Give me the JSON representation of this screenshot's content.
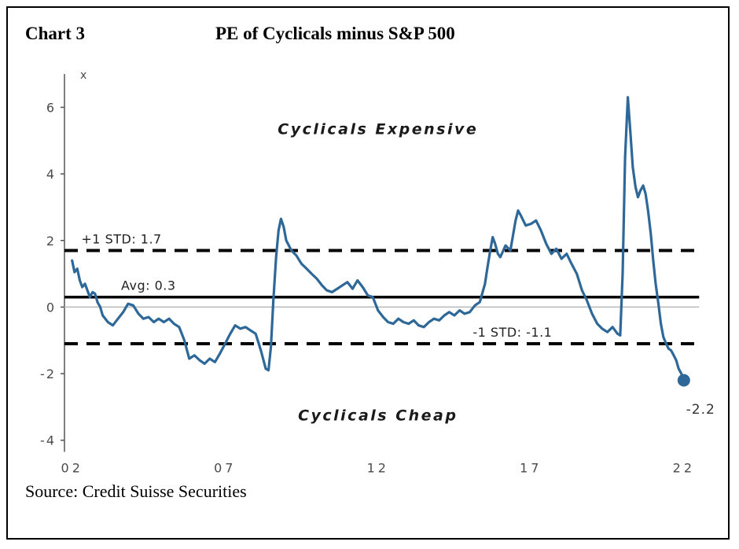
{
  "header": {
    "chart_label": "Chart 3",
    "title": "PE of Cyclicals minus S&P 500"
  },
  "footer": {
    "source": "Source: Credit Suisse Securities"
  },
  "chart_data": {
    "type": "line",
    "title": "PE of Cyclicals minus S&P 500",
    "y_axis_label": "x",
    "xlabel": "",
    "ylabel": "",
    "ylim": [
      -4.55,
      7.05
    ],
    "xlim": [
      2001.75,
      2022.75
    ],
    "axis_top": 7.0,
    "axis_bottom": -4.35,
    "ref_line_end": 2022.5,
    "yticks": [
      6,
      4,
      2,
      0,
      -2,
      -4
    ],
    "xticks": [
      {
        "x": 2002,
        "label": "02"
      },
      {
        "x": 2007,
        "label": "07"
      },
      {
        "x": 2012,
        "label": "12"
      },
      {
        "x": 2017,
        "label": "17"
      },
      {
        "x": 2022,
        "label": "22"
      }
    ],
    "reference_lines": [
      {
        "name": "zero-line",
        "value": 0,
        "style": "thin-gray",
        "label": null,
        "label_x": null
      },
      {
        "name": "plus-1-std",
        "value": 1.7,
        "style": "dashed",
        "label": "+1 STD: 1.7",
        "label_x": 2002.3
      },
      {
        "name": "average",
        "value": 0.3,
        "style": "solid",
        "label": "Avg: 0.3",
        "label_x": 2003.6
      },
      {
        "name": "minus-1-std",
        "value": -1.1,
        "style": "dashed",
        "label": "-1 STD: -1.1",
        "label_x": 2015.1
      }
    ],
    "annotations": [
      {
        "name": "cyclicals-expensive",
        "text": "Cyclicals Expensive",
        "x": 2012.0,
        "y": 5.2
      },
      {
        "name": "cyclicals-cheap",
        "text": "Cyclicals Cheap",
        "x": 2012.0,
        "y": -3.4
      }
    ],
    "end_point": {
      "x": 2022.0,
      "y": -2.2,
      "label": "-2.2",
      "label_x": 2022.55,
      "label_y": -3.2
    },
    "series": [
      {
        "name": "PE of Cyclicals minus S&P 500",
        "color": "#2e6898",
        "line_width": 3.2,
        "points": [
          [
            2002.0,
            1.4
          ],
          [
            2002.08,
            1.05
          ],
          [
            2002.17,
            1.15
          ],
          [
            2002.25,
            0.8
          ],
          [
            2002.33,
            0.6
          ],
          [
            2002.42,
            0.7
          ],
          [
            2002.5,
            0.5
          ],
          [
            2002.58,
            0.3
          ],
          [
            2002.67,
            0.45
          ],
          [
            2002.75,
            0.4
          ],
          [
            2002.83,
            0.15
          ],
          [
            2002.92,
            0.0
          ],
          [
            2003.0,
            -0.25
          ],
          [
            2003.17,
            -0.45
          ],
          [
            2003.33,
            -0.55
          ],
          [
            2003.5,
            -0.35
          ],
          [
            2003.67,
            -0.15
          ],
          [
            2003.83,
            0.1
          ],
          [
            2004.0,
            0.05
          ],
          [
            2004.17,
            -0.2
          ],
          [
            2004.33,
            -0.35
          ],
          [
            2004.5,
            -0.3
          ],
          [
            2004.67,
            -0.45
          ],
          [
            2004.83,
            -0.35
          ],
          [
            2005.0,
            -0.45
          ],
          [
            2005.17,
            -0.35
          ],
          [
            2005.33,
            -0.5
          ],
          [
            2005.5,
            -0.6
          ],
          [
            2005.67,
            -1.0
          ],
          [
            2005.83,
            -1.55
          ],
          [
            2006.0,
            -1.45
          ],
          [
            2006.17,
            -1.6
          ],
          [
            2006.33,
            -1.7
          ],
          [
            2006.5,
            -1.55
          ],
          [
            2006.67,
            -1.65
          ],
          [
            2006.83,
            -1.4
          ],
          [
            2007.0,
            -1.1
          ],
          [
            2007.17,
            -0.8
          ],
          [
            2007.33,
            -0.55
          ],
          [
            2007.5,
            -0.65
          ],
          [
            2007.67,
            -0.6
          ],
          [
            2007.83,
            -0.7
          ],
          [
            2008.0,
            -0.8
          ],
          [
            2008.17,
            -1.3
          ],
          [
            2008.33,
            -1.85
          ],
          [
            2008.42,
            -1.9
          ],
          [
            2008.5,
            -1.2
          ],
          [
            2008.58,
            0.2
          ],
          [
            2008.67,
            1.5
          ],
          [
            2008.75,
            2.3
          ],
          [
            2008.83,
            2.65
          ],
          [
            2008.92,
            2.4
          ],
          [
            2009.0,
            2.0
          ],
          [
            2009.17,
            1.7
          ],
          [
            2009.33,
            1.55
          ],
          [
            2009.5,
            1.3
          ],
          [
            2009.67,
            1.15
          ],
          [
            2009.83,
            1.0
          ],
          [
            2010.0,
            0.85
          ],
          [
            2010.17,
            0.65
          ],
          [
            2010.33,
            0.5
          ],
          [
            2010.5,
            0.45
          ],
          [
            2010.67,
            0.55
          ],
          [
            2010.83,
            0.65
          ],
          [
            2011.0,
            0.75
          ],
          [
            2011.17,
            0.55
          ],
          [
            2011.33,
            0.8
          ],
          [
            2011.5,
            0.6
          ],
          [
            2011.67,
            0.35
          ],
          [
            2011.83,
            0.3
          ],
          [
            2012.0,
            -0.1
          ],
          [
            2012.17,
            -0.3
          ],
          [
            2012.33,
            -0.45
          ],
          [
            2012.5,
            -0.5
          ],
          [
            2012.67,
            -0.35
          ],
          [
            2012.83,
            -0.45
          ],
          [
            2013.0,
            -0.5
          ],
          [
            2013.17,
            -0.4
          ],
          [
            2013.33,
            -0.55
          ],
          [
            2013.5,
            -0.6
          ],
          [
            2013.67,
            -0.45
          ],
          [
            2013.83,
            -0.35
          ],
          [
            2014.0,
            -0.4
          ],
          [
            2014.17,
            -0.25
          ],
          [
            2014.33,
            -0.15
          ],
          [
            2014.5,
            -0.25
          ],
          [
            2014.67,
            -0.1
          ],
          [
            2014.83,
            -0.2
          ],
          [
            2015.0,
            -0.15
          ],
          [
            2015.17,
            0.05
          ],
          [
            2015.33,
            0.15
          ],
          [
            2015.5,
            0.7
          ],
          [
            2015.58,
            1.2
          ],
          [
            2015.67,
            1.7
          ],
          [
            2015.75,
            2.1
          ],
          [
            2015.83,
            1.9
          ],
          [
            2015.92,
            1.6
          ],
          [
            2016.0,
            1.5
          ],
          [
            2016.17,
            1.85
          ],
          [
            2016.33,
            1.7
          ],
          [
            2016.5,
            2.6
          ],
          [
            2016.58,
            2.9
          ],
          [
            2016.67,
            2.75
          ],
          [
            2016.83,
            2.45
          ],
          [
            2017.0,
            2.5
          ],
          [
            2017.17,
            2.6
          ],
          [
            2017.33,
            2.3
          ],
          [
            2017.5,
            1.9
          ],
          [
            2017.67,
            1.6
          ],
          [
            2017.83,
            1.75
          ],
          [
            2018.0,
            1.45
          ],
          [
            2018.17,
            1.6
          ],
          [
            2018.33,
            1.3
          ],
          [
            2018.5,
            1.0
          ],
          [
            2018.67,
            0.5
          ],
          [
            2018.83,
            0.2
          ],
          [
            2019.0,
            -0.2
          ],
          [
            2019.17,
            -0.5
          ],
          [
            2019.33,
            -0.65
          ],
          [
            2019.5,
            -0.75
          ],
          [
            2019.67,
            -0.6
          ],
          [
            2019.83,
            -0.8
          ],
          [
            2019.92,
            -0.85
          ],
          [
            2020.0,
            1.0
          ],
          [
            2020.08,
            4.5
          ],
          [
            2020.17,
            6.3
          ],
          [
            2020.25,
            5.3
          ],
          [
            2020.33,
            4.2
          ],
          [
            2020.42,
            3.6
          ],
          [
            2020.5,
            3.3
          ],
          [
            2020.58,
            3.5
          ],
          [
            2020.67,
            3.65
          ],
          [
            2020.75,
            3.4
          ],
          [
            2020.83,
            2.9
          ],
          [
            2020.92,
            2.2
          ],
          [
            2021.0,
            1.4
          ],
          [
            2021.08,
            0.7
          ],
          [
            2021.17,
            0.1
          ],
          [
            2021.25,
            -0.5
          ],
          [
            2021.33,
            -0.9
          ],
          [
            2021.42,
            -1.1
          ],
          [
            2021.5,
            -1.25
          ],
          [
            2021.58,
            -1.3
          ],
          [
            2021.67,
            -1.45
          ],
          [
            2021.75,
            -1.6
          ],
          [
            2021.83,
            -1.85
          ],
          [
            2021.92,
            -2.0
          ],
          [
            2022.0,
            -2.2
          ]
        ]
      }
    ]
  }
}
